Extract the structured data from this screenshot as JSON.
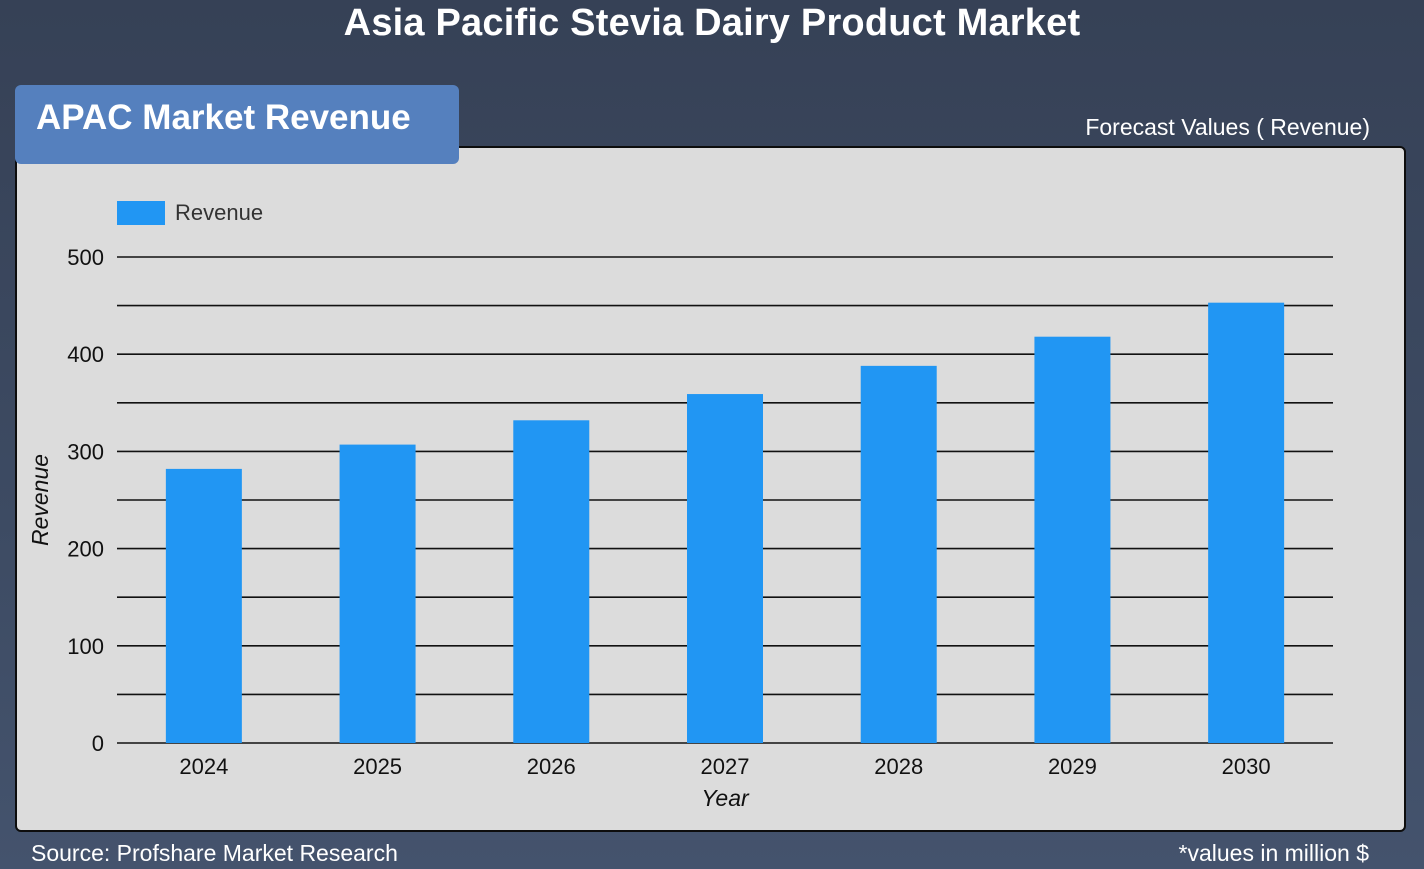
{
  "page": {
    "title": "Asia Pacific Stevia Dairy Product Market",
    "section_label": "APAC Market Revenue",
    "forecast_label": "Forecast Values ( Revenue)",
    "source": "Source: Profshare Market Research",
    "units_note": "*values in million $"
  },
  "colors": {
    "bar": "#2196f3",
    "panel": "#dcdcdc",
    "tab": "#5580be",
    "grid": "#111111"
  },
  "chart_data": {
    "type": "bar",
    "categories": [
      "2024",
      "2025",
      "2026",
      "2027",
      "2028",
      "2029",
      "2030"
    ],
    "series": [
      {
        "name": "Revenue",
        "values": [
          282,
          307,
          332,
          359,
          388,
          418,
          453
        ]
      }
    ],
    "xlabel": "Year",
    "ylabel": "Revenue",
    "ylim": [
      0,
      500
    ],
    "yticks": [
      0,
      100,
      200,
      300,
      400,
      500
    ],
    "grid": true,
    "legend": "top-left"
  }
}
